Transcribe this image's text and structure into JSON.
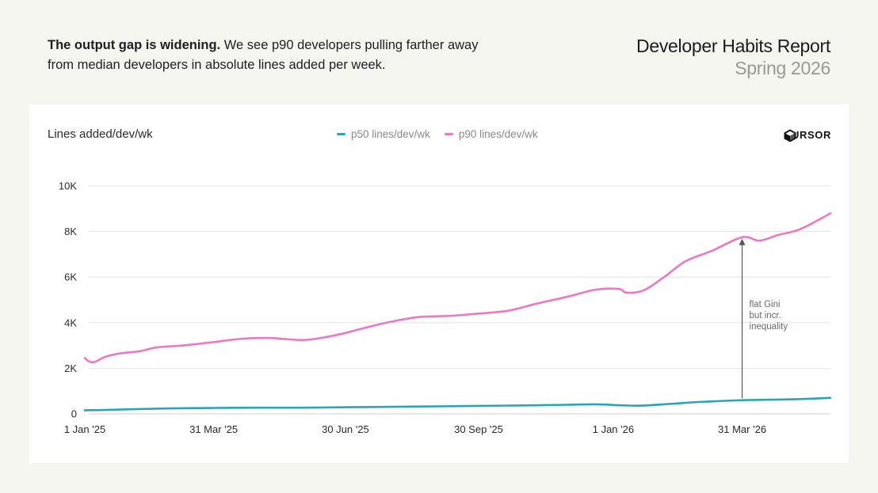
{
  "intro": {
    "bold": "The output gap is widening.",
    "rest": " We see p90 developers pulling farther away from median developers in absolute lines added per week."
  },
  "report": {
    "title": "Developer Habits Report",
    "subtitle": "Spring 2026"
  },
  "brand": {
    "name": "CURSOR",
    "icon": "cursor-logo-icon"
  },
  "colors": {
    "p50": "#2aa5b8",
    "p90": "#ec78c4",
    "grid": "#e4e4e4",
    "background": "#f6f6f1"
  },
  "chart_data": {
    "type": "line",
    "ylabel": "Lines added/dev/wk",
    "ylim": [
      0,
      10000
    ],
    "yticks": [
      {
        "value": 0,
        "label": "0"
      },
      {
        "value": 2000,
        "label": "2K"
      },
      {
        "value": 4000,
        "label": "4K"
      },
      {
        "value": 6000,
        "label": "6K"
      },
      {
        "value": 8000,
        "label": "8K"
      },
      {
        "value": 10000,
        "label": "10K"
      }
    ],
    "xlim": [
      "2025-01-01",
      "2026-05-31"
    ],
    "xticks": [
      {
        "date": "2025-01-01",
        "label": "1 Jan '25"
      },
      {
        "date": "2025-03-31",
        "label": "31 Mar '25"
      },
      {
        "date": "2025-06-30",
        "label": "30 Jun '25"
      },
      {
        "date": "2025-09-30",
        "label": "30 Sep '25"
      },
      {
        "date": "2026-01-01",
        "label": "1 Jan '26"
      },
      {
        "date": "2026-03-31",
        "label": "31 Mar '26"
      }
    ],
    "grid": "horizontal",
    "legend_position": "top-center",
    "series": [
      {
        "name": "p50 lines/dev/wk",
        "color": "#2aa5b8",
        "points": [
          [
            "2025-01-01",
            160
          ],
          [
            "2025-01-15",
            170
          ],
          [
            "2025-02-01",
            200
          ],
          [
            "2025-03-01",
            240
          ],
          [
            "2025-04-01",
            260
          ],
          [
            "2025-05-01",
            270
          ],
          [
            "2025-06-01",
            270
          ],
          [
            "2025-07-01",
            290
          ],
          [
            "2025-08-01",
            310
          ],
          [
            "2025-09-01",
            330
          ],
          [
            "2025-10-01",
            350
          ],
          [
            "2025-11-01",
            370
          ],
          [
            "2025-12-01",
            400
          ],
          [
            "2025-12-20",
            420
          ],
          [
            "2026-01-05",
            380
          ],
          [
            "2026-01-20",
            360
          ],
          [
            "2026-02-10",
            440
          ],
          [
            "2026-03-01",
            520
          ],
          [
            "2026-03-31",
            600
          ],
          [
            "2026-04-20",
            620
          ],
          [
            "2026-05-10",
            650
          ],
          [
            "2026-05-31",
            700
          ]
        ]
      },
      {
        "name": "p90 lines/dev/wk",
        "color": "#ec78c4",
        "points": [
          [
            "2025-01-01",
            2450
          ],
          [
            "2025-01-04",
            2300
          ],
          [
            "2025-01-08",
            2280
          ],
          [
            "2025-01-15",
            2500
          ],
          [
            "2025-01-25",
            2650
          ],
          [
            "2025-02-08",
            2750
          ],
          [
            "2025-02-20",
            2920
          ],
          [
            "2025-03-10",
            3000
          ],
          [
            "2025-03-31",
            3150
          ],
          [
            "2025-04-20",
            3300
          ],
          [
            "2025-05-08",
            3330
          ],
          [
            "2025-05-20",
            3280
          ],
          [
            "2025-06-01",
            3240
          ],
          [
            "2025-06-15",
            3350
          ],
          [
            "2025-06-30",
            3550
          ],
          [
            "2025-07-15",
            3800
          ],
          [
            "2025-08-01",
            4050
          ],
          [
            "2025-08-20",
            4250
          ],
          [
            "2025-09-10",
            4300
          ],
          [
            "2025-09-30",
            4400
          ],
          [
            "2025-10-20",
            4520
          ],
          [
            "2025-11-10",
            4850
          ],
          [
            "2025-12-01",
            5150
          ],
          [
            "2025-12-20",
            5450
          ],
          [
            "2026-01-05",
            5480
          ],
          [
            "2026-01-10",
            5320
          ],
          [
            "2026-01-22",
            5420
          ],
          [
            "2026-02-05",
            6000
          ],
          [
            "2026-02-20",
            6700
          ],
          [
            "2026-03-10",
            7150
          ],
          [
            "2026-03-31",
            7750
          ],
          [
            "2026-04-12",
            7600
          ],
          [
            "2026-04-25",
            7850
          ],
          [
            "2026-05-10",
            8100
          ],
          [
            "2026-05-31",
            8800
          ]
        ]
      }
    ],
    "annotation": {
      "lines": [
        "flat Gini",
        "but incr.",
        "inequality"
      ],
      "date": "2026-03-31",
      "from": 620,
      "to": 7750
    }
  }
}
